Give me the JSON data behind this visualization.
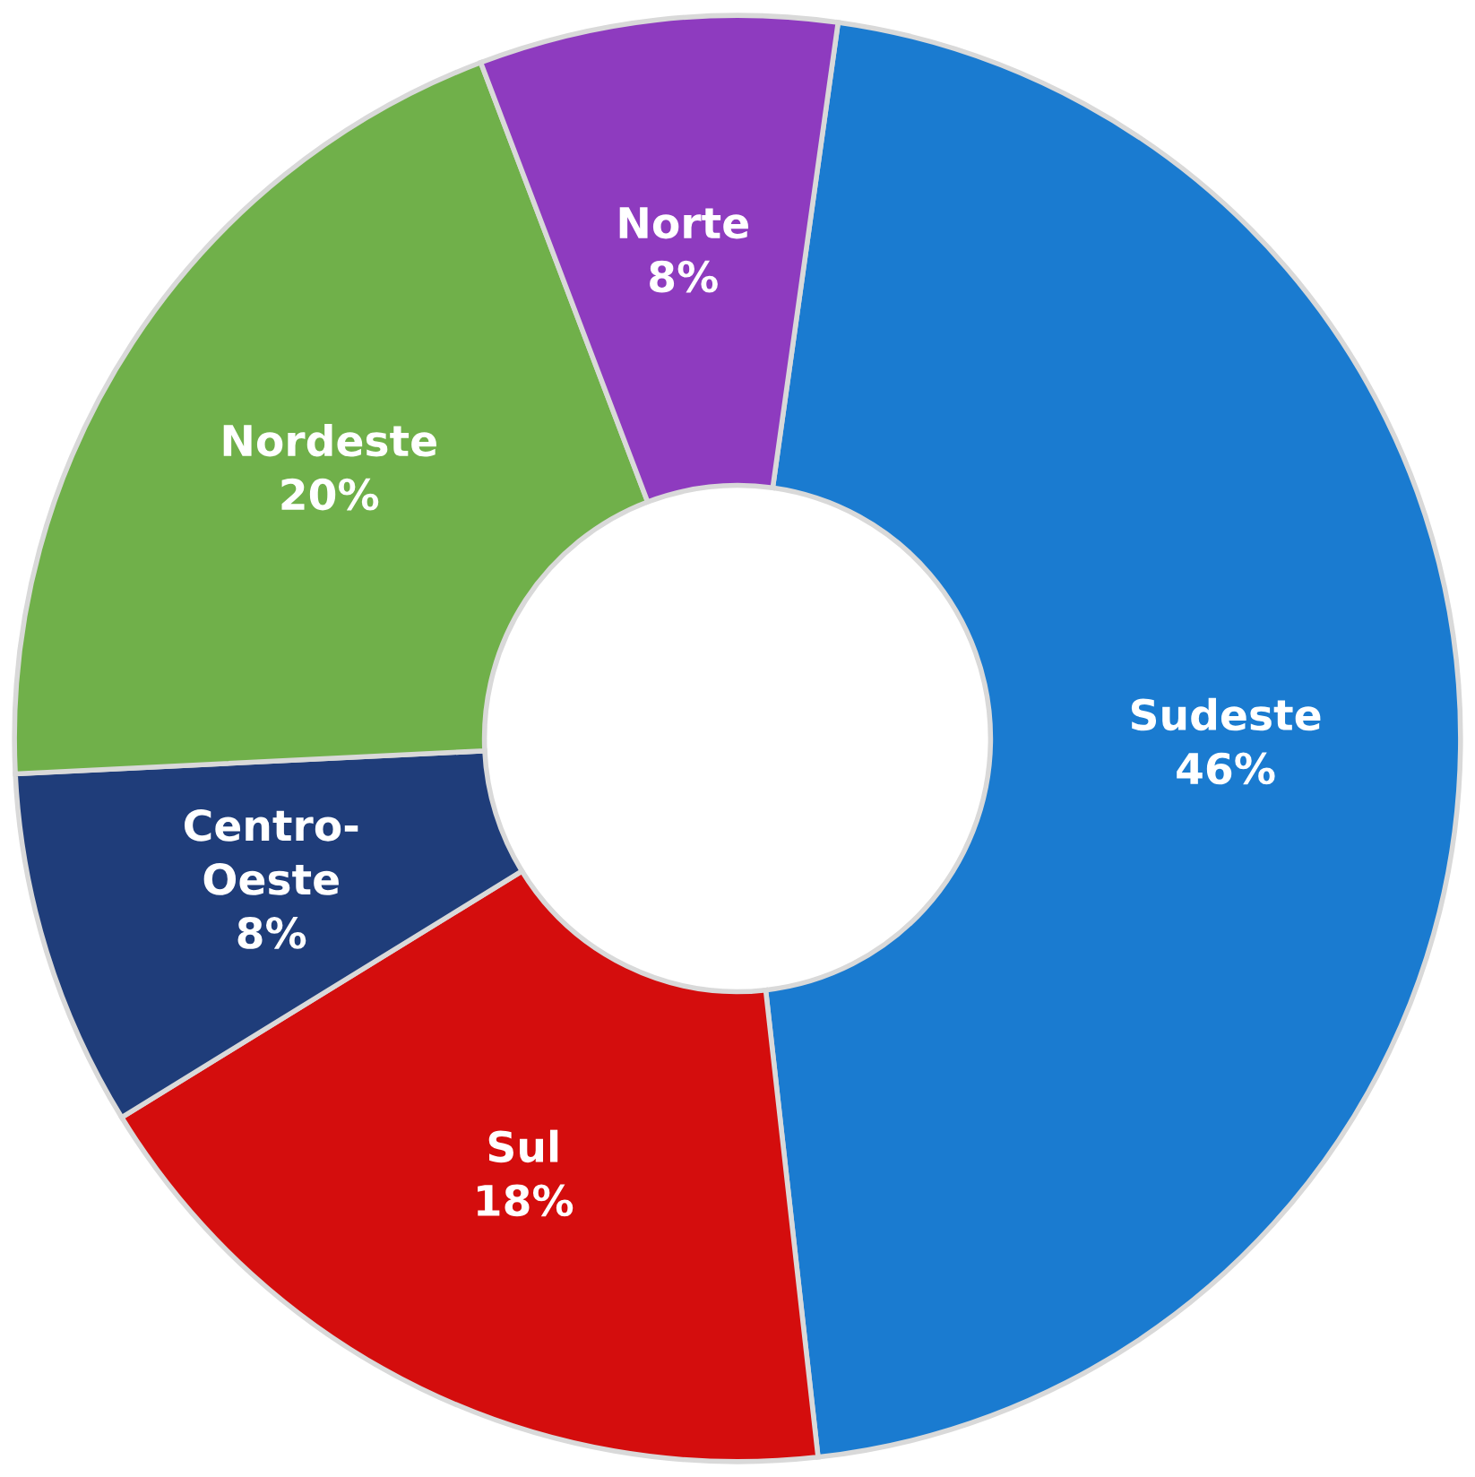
{
  "chart_data": {
    "type": "donut",
    "categories": [
      "Sudeste",
      "Sul",
      "Centro-Oeste",
      "Nordeste",
      "Norte"
    ],
    "values": [
      46,
      18,
      8,
      20,
      8
    ],
    "value_labels": [
      "46%",
      "18%",
      "8%",
      "20%",
      "8%"
    ],
    "colors": [
      "#1a7bd0",
      "#d40d0d",
      "#1f3d7a",
      "#70b04a",
      "#8e3bbf"
    ],
    "legend": false
  }
}
